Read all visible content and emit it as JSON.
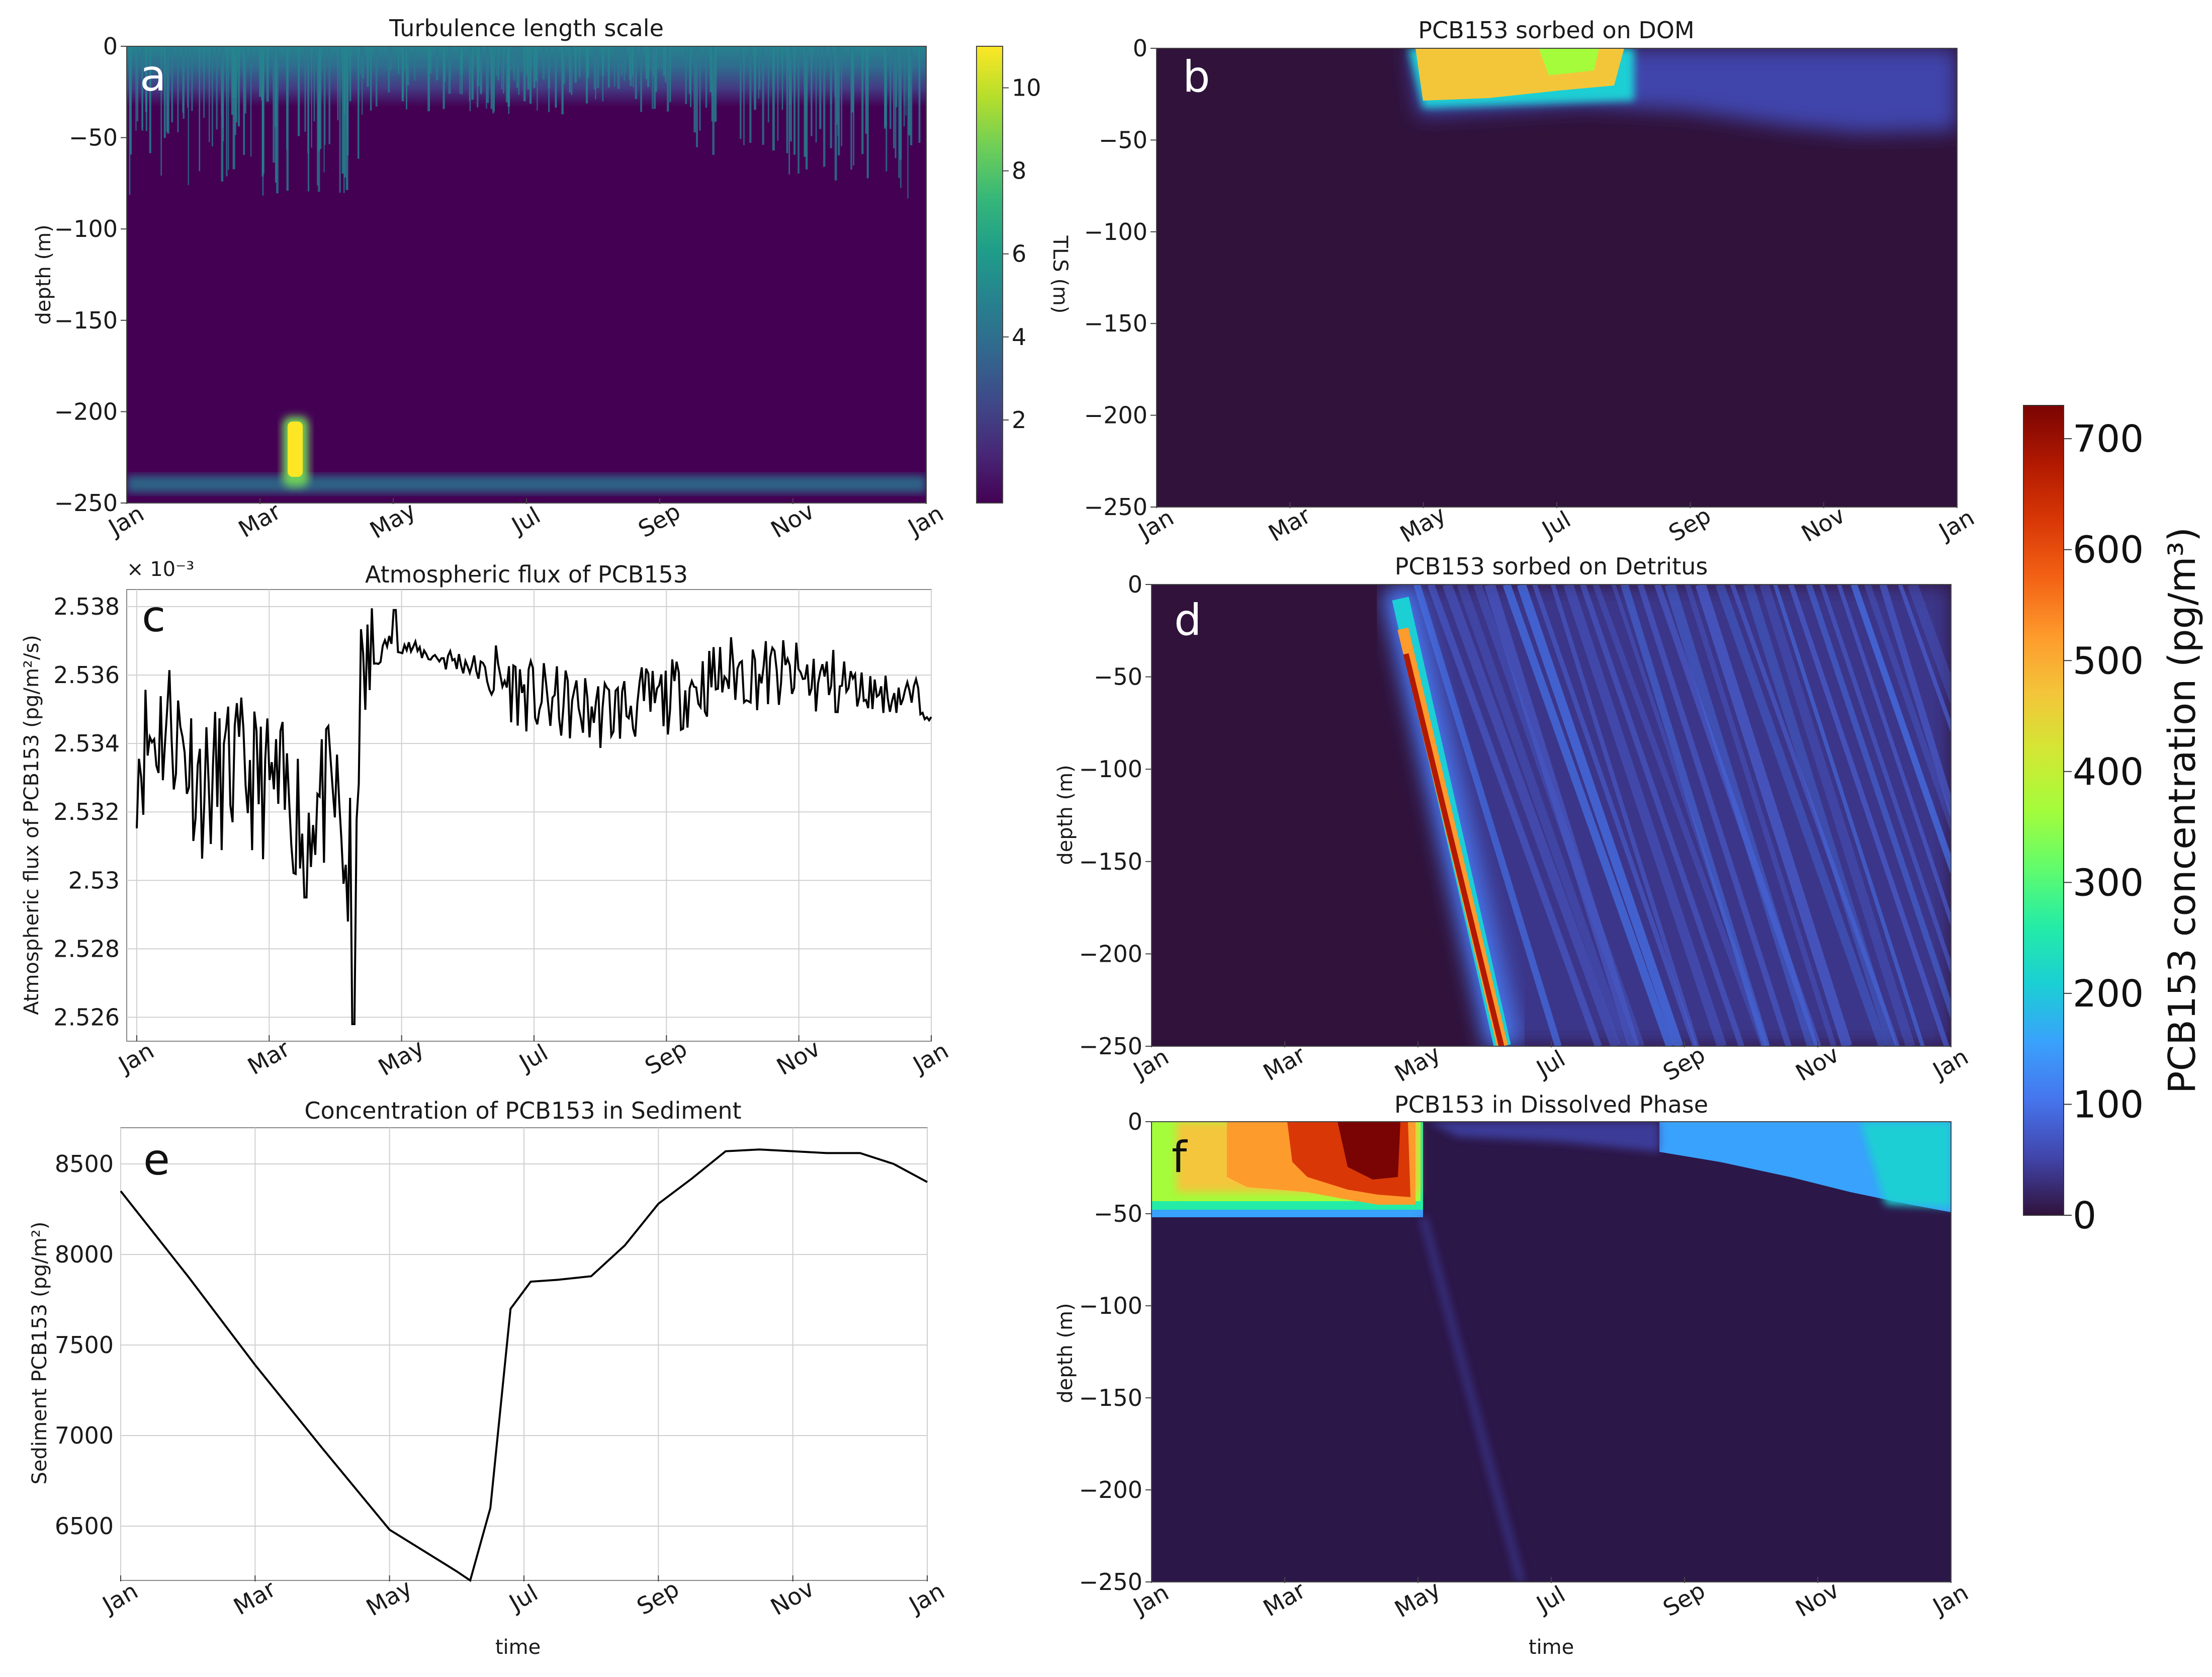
{
  "colors": {
    "viridis": [
      "#440154",
      "#482878",
      "#3e4989",
      "#31688e",
      "#26828e",
      "#1f9e89",
      "#35b779",
      "#6ece58",
      "#b5de2b",
      "#fde725"
    ],
    "turbo": [
      "#30123b",
      "#4145ab",
      "#4675ed",
      "#39a2fc",
      "#1bcfd4",
      "#24eca6",
      "#61fc6c",
      "#a4fc3b",
      "#d1e834",
      "#f3c63a",
      "#fe9b2d",
      "#f36315",
      "#d93806",
      "#b11901",
      "#7a0403"
    ],
    "viridis_bg": "#440154",
    "turbo_bg": "#30123b",
    "line": "#000000",
    "grid": "#d0d0d0"
  },
  "months": [
    "Jan",
    "Mar",
    "May",
    "Jul",
    "Sep",
    "Nov",
    "Jan"
  ],
  "depth_ticks": [
    "0",
    "−50",
    "−100",
    "−150",
    "−200",
    "−250"
  ],
  "panels": {
    "a": {
      "letter": "a",
      "title": "Turbulence length scale",
      "ylabel": "depth (m)"
    },
    "b": {
      "letter": "b",
      "title": "PCB153 sorbed on DOM"
    },
    "c": {
      "letter": "c",
      "title": "Atmospheric flux of PCB153",
      "ylabel": "Atmospheric flux of PCB153 (pg/m²/s)",
      "multiplier": "× 10⁻³"
    },
    "d": {
      "letter": "d",
      "title": "PCB153 sorbed on Detritus",
      "ylabel": "depth (m)"
    },
    "e": {
      "letter": "e",
      "title": "Concentration of PCB153 in Sediment",
      "ylabel": "Sediment PCB153 (pg/m²)",
      "xlabel": "time"
    },
    "f": {
      "letter": "f",
      "title": "PCB153 in Dissolved Phase",
      "ylabel": "depth (m)",
      "xlabel": "time"
    }
  },
  "colorbars": {
    "tls": {
      "label": "TLS (m)",
      "ticks": [
        "2",
        "4",
        "6",
        "8",
        "10"
      ]
    },
    "pcb": {
      "label": "PCB153 concentration (pg/m³)",
      "ticks": [
        "0",
        "100",
        "200",
        "300",
        "400",
        "500",
        "600",
        "700"
      ]
    }
  },
  "chart_data": [
    {
      "panel": "a",
      "type": "heatmap",
      "title": "Turbulence length scale",
      "x_axis": "month",
      "ylabel": "depth (m)",
      "ylim": [
        -250,
        0
      ],
      "colorbar": "TLS (m)",
      "crange": [
        0,
        11
      ],
      "features": [
        {
          "desc": "surface mixed layer",
          "t": [
            0,
            12
          ],
          "depth": [
            -55,
            0
          ],
          "value": 4.5
        },
        {
          "desc": "near-bottom layer",
          "t": [
            0,
            12
          ],
          "depth": [
            -250,
            -240
          ],
          "value": 4
        },
        {
          "desc": "deep burst",
          "t": [
            2.55,
            2.8
          ],
          "depth": [
            -235,
            -200
          ],
          "value": 10.5
        }
      ]
    },
    {
      "panel": "b",
      "type": "heatmap",
      "title": "PCB153 sorbed on DOM",
      "x_axis": "month",
      "ylim": [
        -250,
        0
      ],
      "colorbar": "PCB153 concentration (pg/m³)",
      "crange": [
        0,
        730
      ],
      "features": [
        {
          "desc": "surface peak",
          "t": [
            4.0,
            6.5
          ],
          "depth": [
            -40,
            0
          ],
          "value": 420
        },
        {
          "desc": "decay",
          "t": [
            6.5,
            11.8
          ],
          "depth": [
            -65,
            0
          ],
          "value": 120
        }
      ]
    },
    {
      "panel": "c",
      "type": "line",
      "title": "Atmospheric flux of PCB153",
      "ylabel": "Atmospheric flux of PCB153 (pg/m²/s)",
      "multiplier": "× 10⁻³",
      "ylim": [
        2.5253,
        2.5385
      ],
      "x": [
        0,
        0.5,
        1,
        1.5,
        2,
        2.5,
        3,
        3.2,
        3.4,
        3.8,
        4.5,
        5,
        6,
        7,
        8,
        9,
        10,
        11,
        12
      ],
      "y": [
        2.5335,
        2.5345,
        2.5325,
        2.533,
        2.5325,
        2.5318,
        2.5322,
        2.5295,
        2.5355,
        2.537,
        2.5365,
        2.5363,
        2.5352,
        2.5348,
        2.5352,
        2.536,
        2.5358,
        2.5355,
        2.5352
      ]
    },
    {
      "panel": "d",
      "type": "heatmap",
      "title": "PCB153 sorbed on Detritus",
      "x_axis": "month",
      "ylabel": "depth (m)",
      "ylim": [
        -250,
        0
      ],
      "colorbar": "PCB153 concentration (pg/m³)",
      "crange": [
        0,
        730
      ],
      "features": [
        {
          "desc": "sinking pulse",
          "from": [
            4.1,
            -40
          ],
          "to": [
            5.5,
            -250
          ],
          "value": 720
        },
        {
          "desc": "sinking streaks",
          "t": [
            4.2,
            12
          ],
          "depth": [
            -250,
            0
          ],
          "value": 100
        }
      ]
    },
    {
      "panel": "e",
      "type": "line",
      "title": "Concentration of PCB153 in Sediment",
      "xlabel": "time",
      "ylabel": "Sediment PCB153 (pg/m²)",
      "ylim": [
        6200,
        8700
      ],
      "x": [
        0,
        1,
        2,
        3,
        4,
        5,
        5.2,
        5.5,
        5.8,
        6.1,
        6.5,
        7,
        7.5,
        8,
        8.5,
        9,
        9.5,
        10,
        10.5,
        11,
        11.5,
        12
      ],
      "y": [
        8350,
        7880,
        7390,
        6930,
        6480,
        6250,
        6200,
        6600,
        7700,
        7850,
        7860,
        7880,
        8050,
        8280,
        8420,
        8570,
        8580,
        8570,
        8560,
        8560,
        8500,
        8400
      ]
    },
    {
      "panel": "f",
      "type": "heatmap",
      "title": "PCB153 in Dissolved Phase",
      "xlabel": "time",
      "ylabel": "depth (m)",
      "ylim": [
        -250,
        0
      ],
      "colorbar": "PCB153 concentration (pg/m³)",
      "crange": [
        0,
        730
      ],
      "features": [
        {
          "desc": "winter mixed layer",
          "t": [
            0,
            4.1
          ],
          "depth": [
            -60,
            0
          ],
          "value": 500
        },
        {
          "desc": "spring peak",
          "t": [
            2.5,
            4.0
          ],
          "depth": [
            -50,
            0
          ],
          "value": 720
        },
        {
          "desc": "autumn surface",
          "t": [
            7.5,
            12
          ],
          "depth": [
            -60,
            0
          ],
          "value": 220
        }
      ]
    }
  ]
}
